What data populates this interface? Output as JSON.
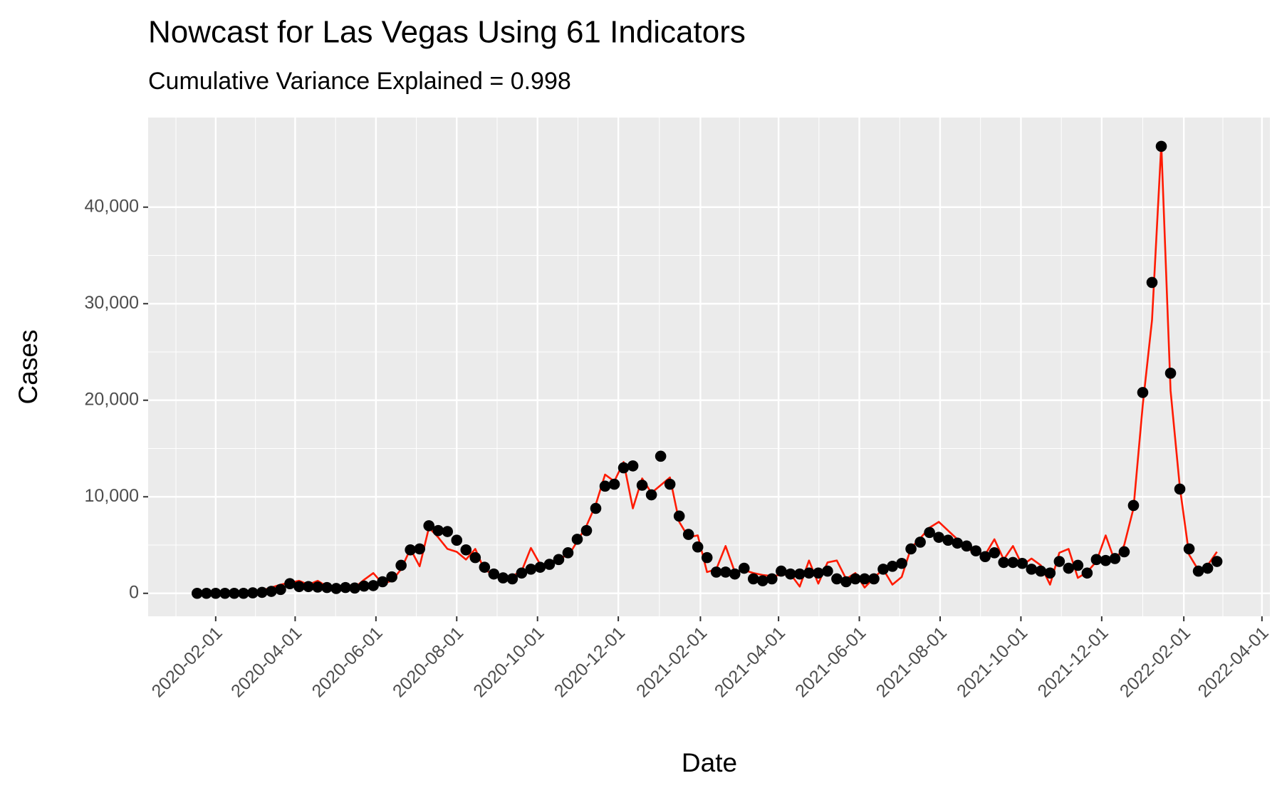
{
  "chart_data": {
    "type": "line",
    "title": "Nowcast for Las Vegas Using 61 Indicators",
    "subtitle": "Cumulative Variance Explained = 0.998",
    "x_label": "Date",
    "y_label": "Cases",
    "x_start": "2020-01-18",
    "x_step_days": 7,
    "xlim": [
      "2019-12-12",
      "2022-04-07"
    ],
    "xticks": [
      "2020-02-01",
      "2020-04-01",
      "2020-06-01",
      "2020-08-01",
      "2020-10-01",
      "2020-12-01",
      "2021-02-01",
      "2021-04-01",
      "2021-06-01",
      "2021-08-01",
      "2021-10-01",
      "2021-12-01",
      "2022-02-01",
      "2022-04-01"
    ],
    "ylim": [
      -2380,
      49280
    ],
    "yticks": [
      0,
      {
        "value": 10000,
        "label": "10,000"
      },
      {
        "value": 20000,
        "label": "20,000"
      },
      {
        "value": 30000,
        "label": "30,000"
      },
      {
        "value": 40000,
        "label": "40,000"
      }
    ],
    "grid": true,
    "series": [
      {
        "color": "#ff1a00",
        "style": "line",
        "values": [
          0,
          0,
          0,
          0,
          0,
          0,
          100,
          300,
          600,
          900,
          1100,
          1300,
          900,
          1300,
          700,
          400,
          700,
          600,
          1400,
          2100,
          1000,
          1300,
          2500,
          4600,
          2800,
          6800,
          5800,
          4600,
          4300,
          3500,
          4600,
          2400,
          2000,
          1300,
          1800,
          2300,
          4700,
          3000,
          3000,
          3800,
          3800,
          5400,
          7000,
          9200,
          12300,
          11600,
          13600,
          8800,
          11900,
          10400,
          11200,
          12000,
          7400,
          5800,
          6000,
          2200,
          2500,
          4900,
          2200,
          2400,
          2100,
          1900,
          1800,
          1900,
          2000,
          700,
          3400,
          1000,
          3200,
          3400,
          1500,
          2100,
          600,
          1600,
          2500,
          900,
          1700,
          4700,
          5700,
          6800,
          7400,
          6500,
          5600,
          4600,
          4300,
          4000,
          5600,
          3500,
          4900,
          2900,
          3600,
          2900,
          900,
          4200,
          4600,
          1600,
          2200,
          3300,
          6000,
          3300,
          5000,
          8800,
          19500,
          28300,
          46500,
          21000,
          11000,
          4000,
          2400,
          2900,
          4300
        ]
      },
      {
        "color": "#000000",
        "style": "points",
        "values": [
          0,
          0,
          0,
          0,
          0,
          0,
          50,
          100,
          200,
          400,
          1000,
          700,
          700,
          650,
          600,
          500,
          600,
          550,
          750,
          800,
          1200,
          1700,
          2900,
          4500,
          4600,
          7000,
          6500,
          6400,
          5500,
          4500,
          3700,
          2700,
          2000,
          1600,
          1500,
          2100,
          2500,
          2700,
          3000,
          3500,
          4200,
          5600,
          6500,
          8800,
          11100,
          11300,
          13000,
          13200,
          11200,
          10200,
          14200,
          11300,
          8000,
          6100,
          4800,
          3700,
          2200,
          2200,
          2000,
          2600,
          1500,
          1300,
          1500,
          2300,
          2000,
          2000,
          2100,
          2100,
          2300,
          1500,
          1200,
          1500,
          1500,
          1500,
          2500,
          2800,
          3100,
          4600,
          5300,
          6300,
          5800,
          5500,
          5200,
          4900,
          4400,
          3800,
          4200,
          3200,
          3200,
          3100,
          2500,
          2300,
          2100,
          3300,
          2600,
          2900,
          2100,
          3500,
          3400,
          3600,
          4300,
          9100,
          20800,
          32200,
          46300,
          22800,
          10800,
          4600,
          2300,
          2600,
          3300
        ]
      }
    ]
  }
}
